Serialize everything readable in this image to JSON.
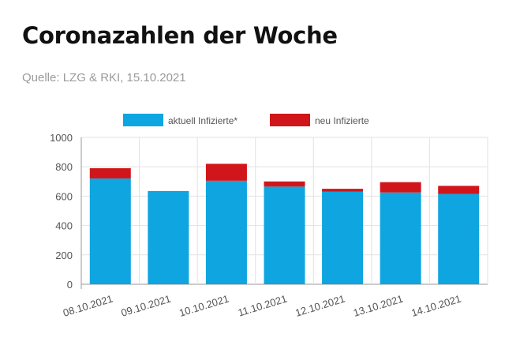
{
  "title": "Coronazahlen der Woche",
  "subtitle": "Quelle: LZG & RKI, 15.10.2021",
  "chart_data": {
    "type": "bar",
    "stacked": true,
    "categories": [
      "08.10.2021",
      "09.10.2021",
      "10.10.2021",
      "11.10.2021",
      "12.10.2021",
      "13.10.2021",
      "14.10.2021"
    ],
    "series": [
      {
        "name": "aktuell Infizierte*",
        "color": "#0ea5e0",
        "values": [
          720,
          635,
          705,
          665,
          630,
          625,
          615
        ]
      },
      {
        "name": "neu Infizierte",
        "color": "#d0161b",
        "values": [
          70,
          0,
          115,
          35,
          20,
          70,
          55
        ]
      }
    ],
    "ylim": [
      0,
      1000
    ],
    "yticks": [
      0,
      200,
      400,
      600,
      800,
      1000
    ],
    "grid": true,
    "legend": "top"
  }
}
